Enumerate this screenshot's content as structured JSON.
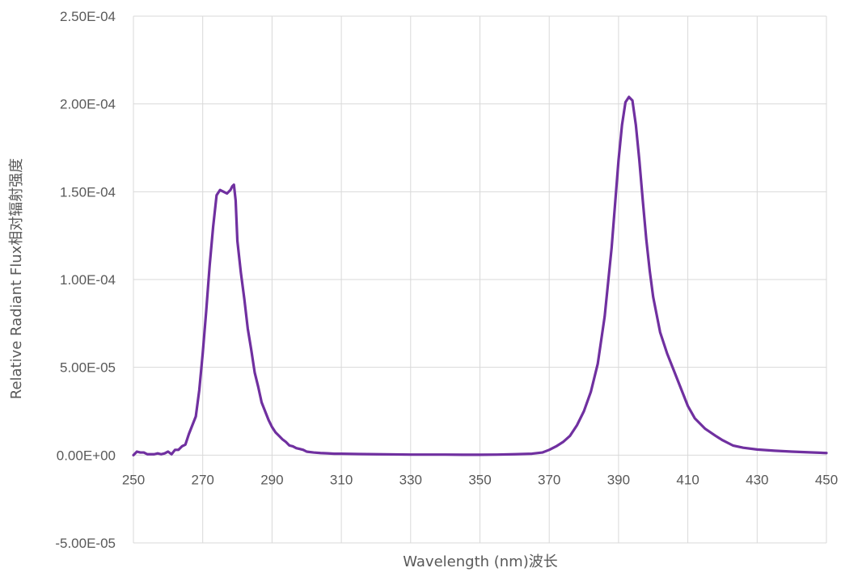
{
  "chart_data": {
    "type": "line",
    "title": "",
    "xlabel": "Wavelength (nm)波长",
    "ylabel": "Relative Radiant Flux相对辐射强度",
    "xlim": [
      250,
      450
    ],
    "ylim": [
      -5e-05,
      0.00025
    ],
    "x_ticks": [
      250,
      270,
      290,
      310,
      330,
      350,
      370,
      390,
      410,
      430,
      450
    ],
    "x_tick_labels": [
      "250",
      "270",
      "290",
      "310",
      "330",
      "350",
      "370",
      "390",
      "410",
      "430",
      "450"
    ],
    "y_ticks": [
      -5e-05,
      0,
      5e-05,
      0.0001,
      0.00015,
      0.0002,
      0.00025
    ],
    "y_tick_labels": [
      "-5.00E-05",
      "0.00E+00",
      "5.00E-05",
      "1.00E-04",
      "1.50E-04",
      "2.00E-04",
      "2.50E-04"
    ],
    "grid": true,
    "legend": "none",
    "colors": {
      "series": "#7030a0",
      "grid": "#d9d9d9",
      "text": "#595959"
    },
    "series": [
      {
        "x": [
          250,
          251,
          252,
          253,
          254,
          255,
          256,
          257,
          258,
          259,
          260,
          261,
          262,
          263,
          264,
          265,
          266,
          267,
          268,
          269,
          270,
          271,
          272,
          273,
          274,
          275,
          276,
          277,
          278,
          278.5,
          279,
          279.5,
          280,
          281,
          282,
          283,
          284,
          285,
          286,
          287,
          288,
          289,
          290,
          291,
          292,
          293,
          294,
          295,
          296,
          297,
          298,
          299,
          300,
          302,
          304,
          306,
          308,
          310,
          315,
          320,
          325,
          330,
          335,
          340,
          345,
          350,
          355,
          360,
          365,
          368,
          370,
          372,
          374,
          376,
          378,
          380,
          382,
          384,
          386,
          388,
          389,
          390,
          391,
          392,
          393,
          394,
          395,
          396,
          397,
          398,
          399,
          400,
          402,
          404,
          406,
          408,
          410,
          412,
          415,
          418,
          420,
          423,
          426,
          430,
          435,
          440,
          445,
          450
        ],
        "values": [
          0,
          2e-06,
          1.5e-06,
          1.5e-06,
          5e-07,
          5e-07,
          5e-07,
          1e-06,
          5e-07,
          1e-06,
          2e-06,
          5e-07,
          3e-06,
          3e-06,
          5e-06,
          6e-06,
          1.2e-05,
          1.7e-05,
          2.2e-05,
          3.7e-05,
          5.8e-05,
          8.2e-05,
          0.000108,
          0.00013,
          0.000148,
          0.000151,
          0.00015,
          0.000149,
          0.000151,
          0.000153,
          0.000154,
          0.000145,
          0.000122,
          0.000104,
          8.9e-05,
          7.2e-05,
          6e-05,
          4.7e-05,
          3.9e-05,
          3e-05,
          2.5e-05,
          2e-05,
          1.6e-05,
          1.3e-05,
          1.1e-05,
          9e-06,
          7.5e-06,
          5.5e-06,
          5e-06,
          4e-06,
          3.5e-06,
          3e-06,
          2e-06,
          1.5e-06,
          1.2e-06,
          1e-06,
          8e-07,
          8e-07,
          6e-07,
          5e-07,
          4e-07,
          3e-07,
          3e-07,
          3e-07,
          2e-07,
          2e-07,
          3e-07,
          5e-07,
          8e-07,
          1.5e-06,
          3e-06,
          5e-06,
          7.5e-06,
          1.1e-05,
          1.7e-05,
          2.5e-05,
          3.6e-05,
          5.2e-05,
          7.9e-05,
          0.000118,
          0.000143,
          0.000168,
          0.000188,
          0.000201,
          0.000204,
          0.000202,
          0.000188,
          0.000168,
          0.000145,
          0.000123,
          0.000105,
          9e-05,
          7e-05,
          5.8e-05,
          4.8e-05,
          3.8e-05,
          2.8e-05,
          2.1e-05,
          1.5e-05,
          1.1e-05,
          8.5e-06,
          5.5e-06,
          4.2e-06,
          3.2e-06,
          2.5e-06,
          2e-06,
          1.6e-06,
          1.2e-06
        ]
      }
    ]
  }
}
